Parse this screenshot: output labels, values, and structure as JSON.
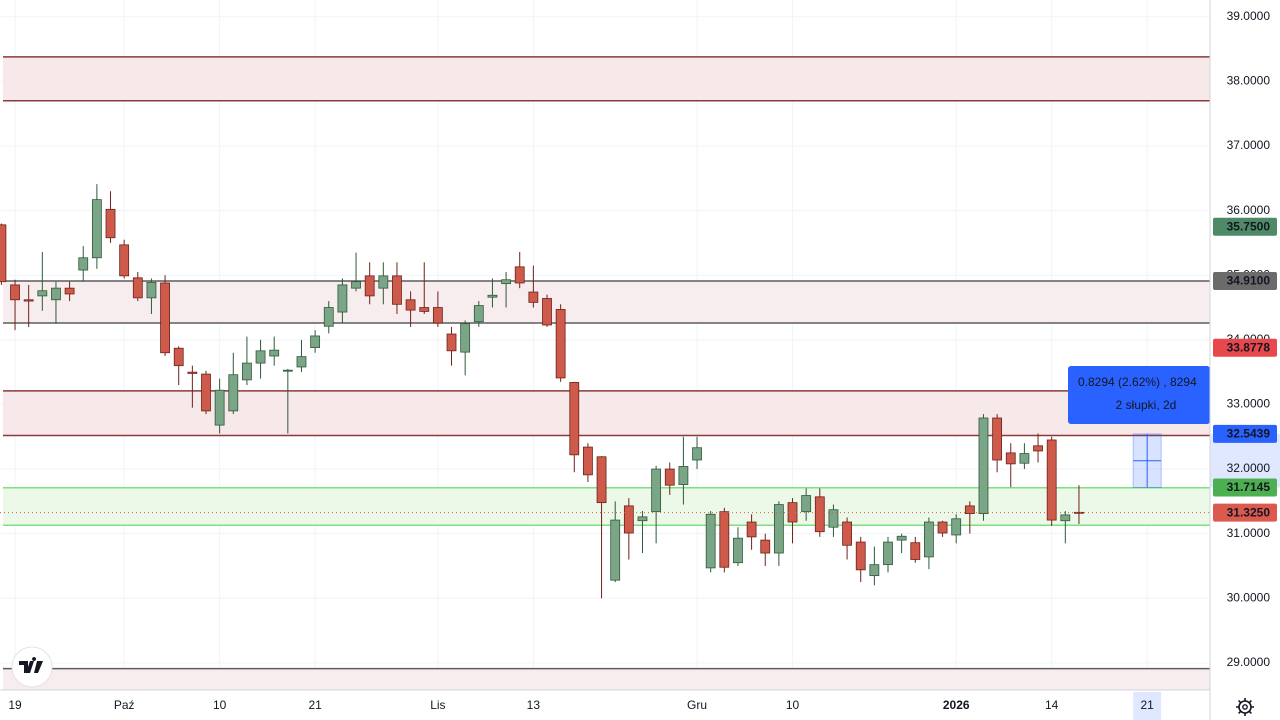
{
  "chart_data": {
    "type": "candlestick",
    "categories": [
      null,
      "19",
      null,
      null,
      null,
      null,
      null,
      null,
      null,
      "Paź",
      null,
      null,
      null,
      null,
      null,
      null,
      "10",
      null,
      null,
      null,
      null,
      null,
      null,
      "21",
      null,
      null,
      null,
      null,
      null,
      null,
      null,
      null,
      "Lis",
      null,
      null,
      null,
      null,
      null,
      null,
      "13",
      null,
      null,
      null,
      null,
      null,
      null,
      null,
      null,
      null,
      null,
      null,
      "Gru",
      null,
      null,
      null,
      null,
      null,
      null,
      "10",
      null,
      null,
      null,
      null,
      null,
      null,
      null,
      null,
      null,
      null,
      null,
      "2026",
      null,
      null,
      null,
      null,
      null,
      null,
      "14",
      null,
      null,
      null,
      null,
      null,
      null,
      "21"
    ],
    "open": [
      35.78,
      34.85,
      34.62,
      34.68,
      34.62,
      34.8,
      35.08,
      35.27,
      36.02,
      35.47,
      34.96,
      34.65,
      34.88,
      33.87,
      33.5,
      33.47,
      32.68,
      32.9,
      33.38,
      33.64,
      33.75,
      33.52,
      33.58,
      33.88,
      34.21,
      34.43,
      34.8,
      34.99,
      34.8,
      34.99,
      34.62,
      34.5,
      34.5,
      34.09,
      33.81,
      34.28,
      34.66,
      34.87,
      35.13,
      34.74,
      34.64,
      34.47,
      33.34,
      32.34,
      32.19,
      30.28,
      31.43,
      31.2,
      31.34,
      32.0,
      31.76,
      32.14,
      30.47,
      31.34,
      30.55,
      31.18,
      30.9,
      30.7,
      31.48,
      31.34,
      31.57,
      31.1,
      31.18,
      30.87,
      30.35,
      30.52,
      30.9,
      30.86,
      30.64,
      31.18,
      30.98,
      31.43,
      31.31,
      32.79,
      32.25,
      32.09,
      32.36,
      32.45,
      31.2,
      31.33,
      null,
      null,
      null,
      null,
      null
    ],
    "high": [
      35.8,
      34.93,
      34.85,
      35.36,
      34.9,
      34.9,
      35.45,
      36.41,
      36.3,
      35.55,
      35.05,
      34.95,
      35.0,
      33.9,
      33.6,
      33.52,
      33.4,
      33.8,
      34.05,
      34.0,
      34.05,
      33.55,
      34.0,
      34.15,
      34.6,
      34.95,
      35.35,
      35.2,
      35.2,
      35.2,
      34.75,
      35.2,
      34.75,
      34.2,
      34.3,
      34.6,
      34.95,
      35.05,
      35.36,
      35.15,
      34.7,
      34.55,
      33.35,
      32.4,
      32.2,
      31.5,
      31.55,
      31.35,
      32.05,
      32.1,
      32.5,
      32.5,
      31.35,
      31.4,
      31.1,
      31.3,
      31.0,
      31.5,
      31.55,
      31.7,
      31.7,
      31.45,
      31.25,
      30.95,
      30.8,
      30.95,
      31.0,
      30.95,
      31.25,
      31.2,
      31.3,
      31.5,
      32.85,
      32.85,
      32.4,
      32.4,
      32.55,
      32.5,
      31.35,
      31.75,
      null,
      null,
      null,
      null,
      null
    ],
    "low": [
      34.85,
      34.15,
      34.2,
      34.45,
      34.25,
      34.6,
      34.9,
      35.1,
      35.5,
      34.95,
      34.6,
      34.4,
      33.75,
      33.3,
      32.95,
      32.85,
      32.55,
      32.85,
      33.3,
      33.4,
      33.6,
      32.55,
      33.5,
      33.8,
      34.1,
      34.26,
      34.75,
      34.55,
      34.55,
      34.4,
      34.2,
      34.4,
      34.2,
      33.6,
      33.45,
      34.2,
      34.5,
      34.5,
      34.8,
      34.5,
      34.2,
      33.35,
      31.95,
      31.8,
      30.0,
      30.25,
      30.6,
      30.7,
      30.85,
      31.6,
      31.45,
      32.0,
      30.4,
      30.4,
      30.5,
      30.75,
      30.5,
      30.5,
      30.85,
      31.2,
      30.95,
      30.95,
      30.6,
      30.25,
      30.2,
      30.4,
      30.7,
      30.55,
      30.45,
      30.95,
      30.85,
      31.0,
      31.2,
      31.95,
      31.72,
      32.0,
      32.1,
      31.12,
      30.85,
      31.15,
      null,
      null,
      null,
      null,
      null
    ],
    "close": [
      34.9,
      34.62,
      34.6,
      34.76,
      34.8,
      34.71,
      35.27,
      36.17,
      35.58,
      34.99,
      34.65,
      34.89,
      33.8,
      33.6,
      33.48,
      32.9,
      33.22,
      33.46,
      33.64,
      33.83,
      33.84,
      33.53,
      33.74,
      34.06,
      34.5,
      34.85,
      34.9,
      34.68,
      34.99,
      34.55,
      34.46,
      34.44,
      34.26,
      33.83,
      34.25,
      34.53,
      34.69,
      34.93,
      34.88,
      34.58,
      34.23,
      33.41,
      32.22,
      31.91,
      31.48,
      31.21,
      31.01,
      31.26,
      32.0,
      31.75,
      32.04,
      32.33,
      31.3,
      30.48,
      30.93,
      30.95,
      30.7,
      31.45,
      31.18,
      31.59,
      31.03,
      31.37,
      30.82,
      30.44,
      30.52,
      30.87,
      30.96,
      30.6,
      31.18,
      31.01,
      31.23,
      31.31,
      32.79,
      32.14,
      32.08,
      32.24,
      32.28,
      31.21,
      31.29,
      31.325,
      null,
      null,
      null,
      null,
      null
    ],
    "up_color": "#7aa587",
    "up_border": "#2e5a3a",
    "down_color": "#cd5a4a",
    "down_border": "#6e2219",
    "ylim": [
      28.58,
      39.26
    ],
    "yticks": [
      {
        "value": 29,
        "label": "29.0000"
      },
      {
        "value": 30,
        "label": "30.0000"
      },
      {
        "value": 31,
        "label": "31.0000"
      },
      {
        "value": 32,
        "label": "32.0000"
      },
      {
        "value": 33,
        "label": "33.0000"
      },
      {
        "value": 34,
        "label": "34.0000"
      },
      {
        "value": 35,
        "label": "35.0000"
      },
      {
        "value": 36,
        "label": "36.0000"
      },
      {
        "value": 37,
        "label": "37.0000"
      },
      {
        "value": 38,
        "label": "38.0000"
      },
      {
        "value": 39,
        "label": "39.0000"
      }
    ],
    "grid": true,
    "zones": [
      {
        "high": 38.38,
        "low": 37.7,
        "color": "#8b3a3a",
        "fill": "#f7e8ea"
      },
      {
        "high": 34.91,
        "low": 34.26,
        "color": "#5d5d5d",
        "fill": "#f7ecee"
      },
      {
        "high": 33.21,
        "low": 32.52,
        "color": "#8b3a3a",
        "fill": "#f7e8ea"
      },
      {
        "high": 31.71,
        "low": 31.13,
        "color": "#7ee07e",
        "fill": "#ecf8e8"
      }
    ],
    "levels": [
      28.91
    ],
    "price_labels": [
      {
        "value": 35.75,
        "label": "35.7500",
        "color": "#4f8a67"
      },
      {
        "value": 34.91,
        "label": "34.9100",
        "color": "#6b6b6b"
      },
      {
        "value": 33.8778,
        "label": "33.8778",
        "color": "#e8474b"
      },
      {
        "value": 32.5439,
        "label": "32.5439",
        "color": "#2962ff"
      },
      {
        "value": 31.7145,
        "label": "31.7145",
        "color": "#4caf50"
      },
      {
        "value": 31.325,
        "label": "31.3250",
        "color": "#dc5a4d"
      }
    ],
    "measure": {
      "line1": "0.8294 (2.62%) , 8294",
      "line2": "2 słupki, 2d"
    }
  }
}
